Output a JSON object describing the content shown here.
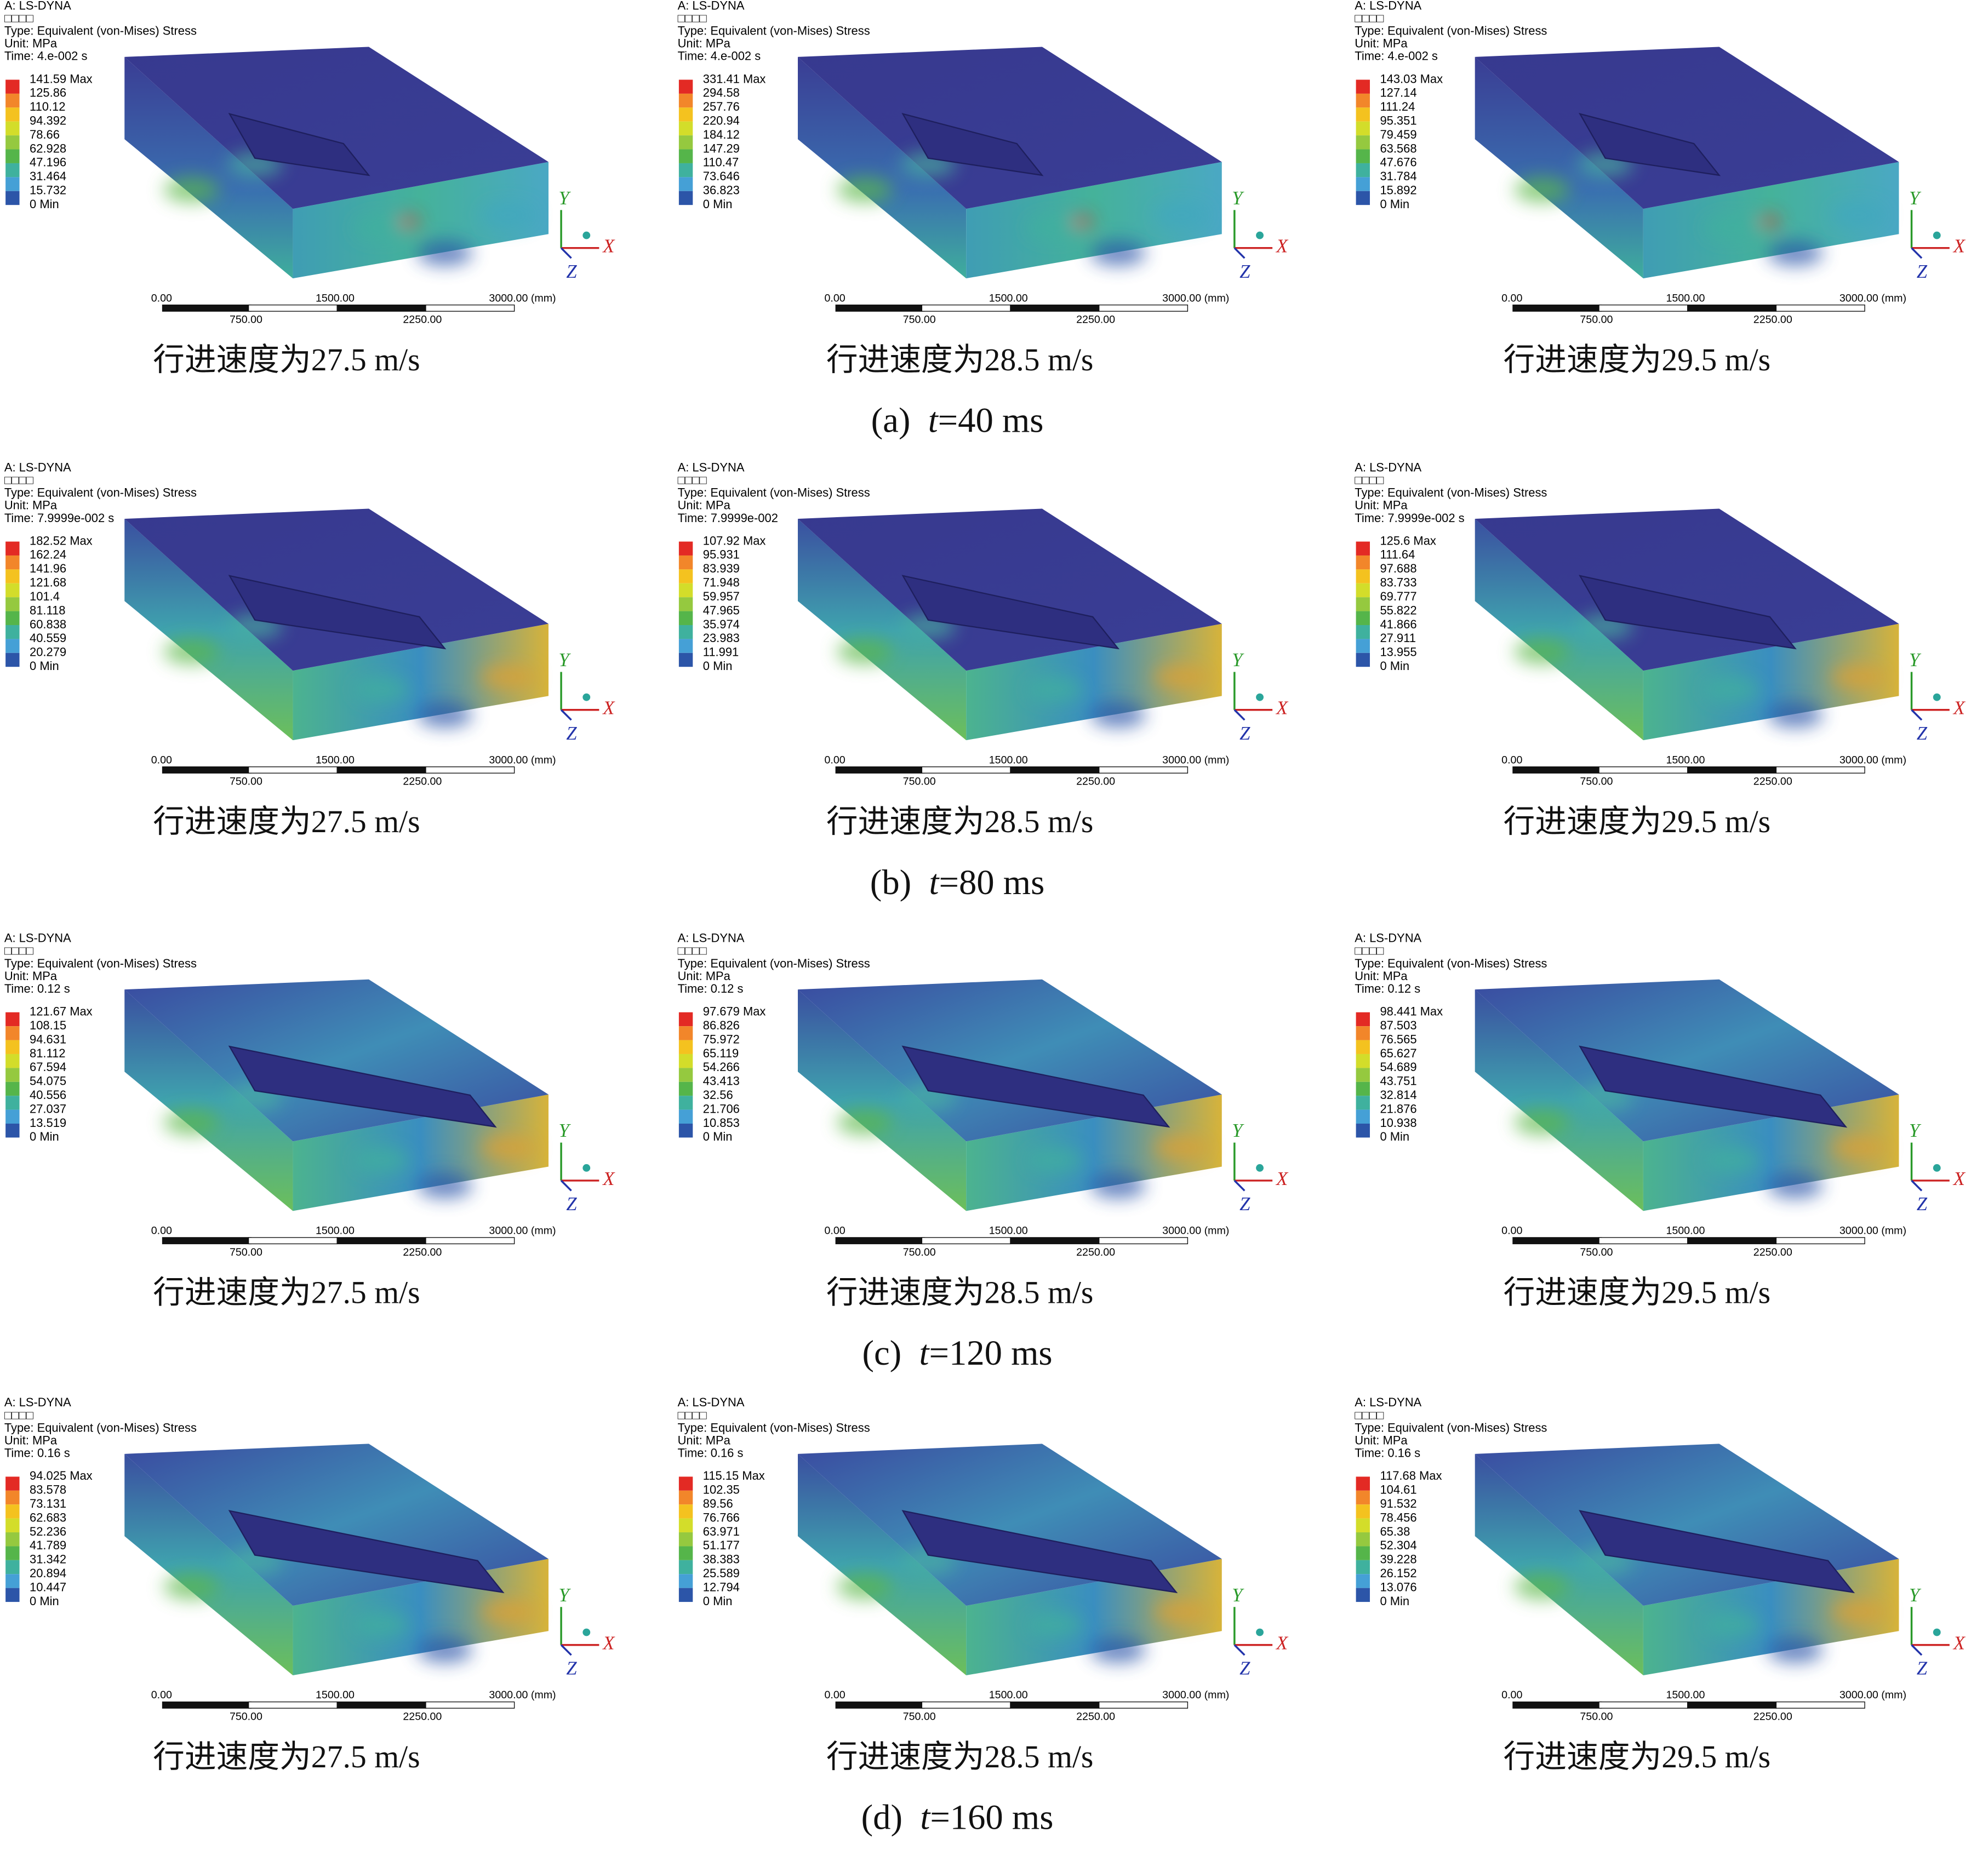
{
  "rows": [
    {
      "label": "(a)",
      "variable": "t",
      "value": "=40 ms",
      "panels": [
        {
          "header": [
            "A: LS-DYNA",
            "□□□□",
            "Type: Equivalent (von-Mises) Stress",
            "Unit: MPa",
            "Time: 4.e-002 s"
          ],
          "legend": [
            "141.59 Max",
            "125.86",
            "110.12",
            "94.392",
            "78.66",
            "62.928",
            "47.196",
            "31.464",
            "15.732",
            "0 Min"
          ],
          "caption": "行进速度为27.5 m/s"
        },
        {
          "header": [
            "A: LS-DYNA",
            "□□□□",
            "Type: Equivalent (von-Mises) Stress",
            "Unit: MPa",
            "Time: 4.e-002 s"
          ],
          "legend": [
            "331.41 Max",
            "294.58",
            "257.76",
            "220.94",
            "184.12",
            "147.29",
            "110.47",
            "73.646",
            "36.823",
            "0 Min"
          ],
          "caption": "行进速度为28.5 m/s"
        },
        {
          "header": [
            "A: LS-DYNA",
            "□□□□",
            "Type: Equivalent (von-Mises) Stress",
            "Unit: MPa",
            "Time: 4.e-002 s"
          ],
          "legend": [
            "143.03 Max",
            "127.14",
            "111.24",
            "95.351",
            "79.459",
            "63.568",
            "47.676",
            "31.784",
            "15.892",
            "0 Min"
          ],
          "caption": "行进速度为29.5 m/s"
        }
      ]
    },
    {
      "label": "(b)",
      "variable": "t",
      "value": "=80 ms",
      "panels": [
        {
          "header": [
            "A: LS-DYNA",
            "□□□□",
            "Type: Equivalent (von-Mises) Stress",
            "Unit: MPa",
            "Time: 7.9999e-002 s"
          ],
          "legend": [
            "182.52 Max",
            "162.24",
            "141.96",
            "121.68",
            "101.4",
            "81.118",
            "60.838",
            "40.559",
            "20.279",
            "0 Min"
          ],
          "caption": "行进速度为27.5 m/s"
        },
        {
          "header": [
            "A: LS-DYNA",
            "□□□□",
            "Type: Equivalent (von-Mises) Stress",
            "Unit: MPa",
            "Time: 7.9999e-002"
          ],
          "legend": [
            "107.92 Max",
            "95.931",
            "83.939",
            "71.948",
            "59.957",
            "47.965",
            "35.974",
            "23.983",
            "11.991",
            "0 Min"
          ],
          "caption": "行进速度为28.5 m/s"
        },
        {
          "header": [
            "A: LS-DYNA",
            "□□□□",
            "Type: Equivalent (von-Mises) Stress",
            "Unit: MPa",
            "Time: 7.9999e-002 s"
          ],
          "legend": [
            "125.6 Max",
            "111.64",
            "97.688",
            "83.733",
            "69.777",
            "55.822",
            "41.866",
            "27.911",
            "13.955",
            "0 Min"
          ],
          "caption": "行进速度为29.5 m/s"
        }
      ]
    },
    {
      "label": "(c)",
      "variable": "t",
      "value": "=120 ms",
      "panels": [
        {
          "header": [
            "A: LS-DYNA",
            "□□□□",
            "Type: Equivalent (von-Mises) Stress",
            "Unit: MPa",
            "Time: 0.12 s"
          ],
          "legend": [
            "121.67 Max",
            "108.15",
            "94.631",
            "81.112",
            "67.594",
            "54.075",
            "40.556",
            "27.037",
            "13.519",
            "0 Min"
          ],
          "caption": "行进速度为27.5 m/s"
        },
        {
          "header": [
            "A: LS-DYNA",
            "□□□□",
            "Type: Equivalent (von-Mises) Stress",
            "Unit: MPa",
            "Time: 0.12 s"
          ],
          "legend": [
            "97.679 Max",
            "86.826",
            "75.972",
            "65.119",
            "54.266",
            "43.413",
            "32.56",
            "21.706",
            "10.853",
            "0 Min"
          ],
          "caption": "行进速度为28.5 m/s"
        },
        {
          "header": [
            "A: LS-DYNA",
            "□□□□",
            "Type: Equivalent (von-Mises) Stress",
            "Unit: MPa",
            "Time: 0.12 s"
          ],
          "legend": [
            "98.441 Max",
            "87.503",
            "76.565",
            "65.627",
            "54.689",
            "43.751",
            "32.814",
            "21.876",
            "10.938",
            "0 Min"
          ],
          "caption": "行进速度为29.5 m/s"
        }
      ]
    },
    {
      "label": "(d)",
      "variable": "t",
      "value": "=160 ms",
      "panels": [
        {
          "header": [
            "A: LS-DYNA",
            "□□□□",
            "Type: Equivalent (von-Mises) Stress",
            "Unit: MPa",
            "Time: 0.16 s"
          ],
          "legend": [
            "94.025 Max",
            "83.578",
            "73.131",
            "62.683",
            "52.236",
            "41.789",
            "31.342",
            "20.894",
            "10.447",
            "0 Min"
          ],
          "caption": "行进速度为27.5 m/s"
        },
        {
          "header": [
            "A: LS-DYNA",
            "□□□□",
            "Type: Equivalent (von-Mises) Stress",
            "Unit: MPa",
            "Time: 0.16 s"
          ],
          "legend": [
            "115.15 Max",
            "102.35",
            "89.56",
            "76.766",
            "63.971",
            "51.177",
            "38.383",
            "25.589",
            "12.794",
            "0 Min"
          ],
          "caption": "行进速度为28.5 m/s"
        },
        {
          "header": [
            "A: LS-DYNA",
            "□□□□",
            "Type: Equivalent (von-Mises) Stress",
            "Unit: MPa",
            "Time: 0.16 s"
          ],
          "legend": [
            "117.68 Max",
            "104.61",
            "91.532",
            "78.456",
            "65.38",
            "52.304",
            "39.228",
            "26.152",
            "13.076",
            "0 Min"
          ],
          "caption": "行进速度为29.5 m/s"
        }
      ]
    }
  ],
  "scale_bar": {
    "top": [
      "0.00",
      "1500.00",
      "3000.00 (mm)"
    ],
    "bottom": [
      "750.00",
      "2250.00"
    ]
  },
  "axes": [
    "Y",
    "X",
    "Z"
  ]
}
